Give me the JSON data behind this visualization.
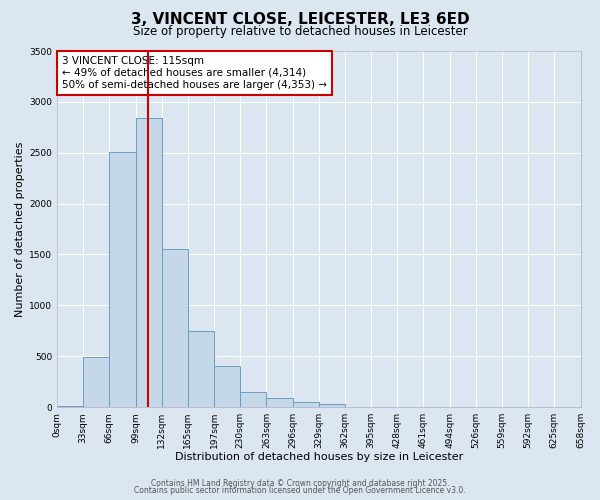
{
  "title": "3, VINCENT CLOSE, LEICESTER, LE3 6ED",
  "subtitle": "Size of property relative to detached houses in Leicester",
  "xlabel": "Distribution of detached houses by size in Leicester",
  "ylabel": "Number of detached properties",
  "xtick_labels": [
    "0sqm",
    "33sqm",
    "66sqm",
    "99sqm",
    "132sqm",
    "165sqm",
    "197sqm",
    "230sqm",
    "263sqm",
    "296sqm",
    "329sqm",
    "362sqm",
    "395sqm",
    "428sqm",
    "461sqm",
    "494sqm",
    "526sqm",
    "559sqm",
    "592sqm",
    "625sqm",
    "658sqm"
  ],
  "bar_values": [
    10,
    490,
    2510,
    2840,
    1550,
    750,
    400,
    150,
    90,
    55,
    30,
    5,
    2,
    1,
    0,
    0,
    0,
    0,
    0,
    0
  ],
  "bar_color": "#c5d8ea",
  "bar_edge_color": "#6b9ec0",
  "background_color": "#dce6f0",
  "plot_background_color": "#dce6f0",
  "grid_color": "#ffffff",
  "vline_x": 3.47,
  "vline_color": "#cc0000",
  "ylim": [
    0,
    3500
  ],
  "yticks": [
    0,
    500,
    1000,
    1500,
    2000,
    2500,
    3000,
    3500
  ],
  "annotation_title": "3 VINCENT CLOSE: 115sqm",
  "annotation_line1": "← 49% of detached houses are smaller (4,314)",
  "annotation_line2": "50% of semi-detached houses are larger (4,353) →",
  "annotation_box_color": "#ffffff",
  "annotation_border_color": "#cc0000",
  "footer1": "Contains HM Land Registry data © Crown copyright and database right 2025.",
  "footer2": "Contains public sector information licensed under the Open Government Licence v3.0.",
  "title_fontsize": 11,
  "subtitle_fontsize": 8.5,
  "axis_label_fontsize": 8,
  "tick_fontsize": 6.5,
  "annotation_fontsize": 7.5,
  "footer_fontsize": 5.5
}
